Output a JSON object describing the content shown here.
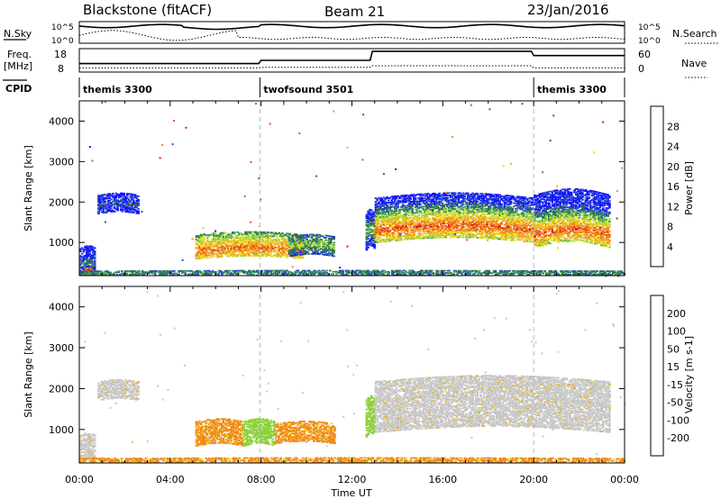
{
  "header": {
    "title": "Blackstone (fitACF)",
    "beam": "Beam 21",
    "date": "23/Jan/2016"
  },
  "panels": {
    "nsky_label": "N.Sky",
    "nsearch_label": "N.Search",
    "freq_label_top": "Freq.",
    "freq_label_bottom": "[MHz]",
    "nave_label": "Nave",
    "cpid_label": "CPID",
    "nsky_ticks": [
      "10^5",
      "10^0"
    ],
    "nsearch_ticks": [
      "10^5",
      "10^0"
    ],
    "freq_ticks": [
      "18",
      "8"
    ],
    "nave_ticks": [
      "60",
      "0"
    ]
  },
  "cpid": [
    {
      "name": "themis 3300",
      "start_hour": 0,
      "end_hour": 7.95
    },
    {
      "name": "twofsound 3501",
      "start_hour": 7.95,
      "end_hour": 20.0
    },
    {
      "name": "themis 3300",
      "start_hour": 20.0,
      "end_hour": 24
    }
  ],
  "colors": {
    "power": [
      "#1414ff",
      "#2c4fc8",
      "#2e6a56",
      "#3a9a5a",
      "#98d63a",
      "#e8dc2a",
      "#f0b21c",
      "#f08a1c",
      "#ea5214",
      "#e01414"
    ],
    "velocity": [
      "#1414c8",
      "#2c4fc8",
      "#2e6a56",
      "#8cd23a",
      "#c8c8c8",
      "#c8c8c8",
      "#f0b21c",
      "#f08a1c",
      "#ea5214",
      "#e01414"
    ],
    "gray": "#c8c8c8"
  },
  "chart_data": [
    {
      "type": "heatmap",
      "name": "power",
      "ylabel": "Slant Range [km]",
      "colorbar_label": "Power [dB]",
      "colorbar_ticks": [
        "28",
        "24",
        "20",
        "16",
        "12",
        "8",
        "4"
      ],
      "xlim_hours": [
        0,
        24
      ],
      "ylim_km": [
        180,
        4500
      ],
      "y_ticks": [
        "4000",
        "3000",
        "2000",
        "1000"
      ],
      "regions": [
        {
          "t0": 0.8,
          "t1": 2.6,
          "r0": 1750,
          "r1": 2200,
          "core": 1950,
          "level": 0.18
        },
        {
          "t0": 0.0,
          "t1": 0.7,
          "r0": 250,
          "r1": 900,
          "core": 500,
          "level": 0.25
        },
        {
          "t0": 0.0,
          "t1": 0.5,
          "r0": 180,
          "r1": 350,
          "core": 250,
          "level": 0.9
        },
        {
          "t0": 5.1,
          "t1": 9.8,
          "r0": 650,
          "r1": 1250,
          "core": 850,
          "level": 0.8
        },
        {
          "t0": 9.2,
          "t1": 11.2,
          "r0": 700,
          "r1": 1200,
          "core": 950,
          "level": 0.45
        },
        {
          "t0": 12.6,
          "t1": 13.0,
          "r0": 900,
          "r1": 1800,
          "core": 1300,
          "level": 0.45
        },
        {
          "t0": 13.0,
          "t1": 20.0,
          "r0": 1100,
          "r1": 2200,
          "core": 1400,
          "level": 0.85
        },
        {
          "t0": 20.0,
          "t1": 23.3,
          "r0": 1000,
          "r1": 2300,
          "core": 1300,
          "level": 0.85
        },
        {
          "t0": 0.0,
          "t1": 24.0,
          "r0": 180,
          "r1": 320,
          "core": 250,
          "level": 0.3
        }
      ]
    },
    {
      "type": "heatmap",
      "name": "velocity",
      "ylabel": "Slant Range [km]",
      "colorbar_label": "Velocity [m s-1]",
      "colorbar_ticks": [
        "200",
        "100",
        "50",
        "15",
        "-15",
        "-50",
        "-100",
        "-200"
      ],
      "xlim_hours": [
        0,
        24
      ],
      "ylim_km": [
        180,
        4500
      ],
      "y_ticks": [
        "4000",
        "3000",
        "2000",
        "1000"
      ],
      "x_ticks": [
        "00:00",
        "04:00",
        "08:00",
        "12:00",
        "16:00",
        "20:00",
        "00:00"
      ],
      "xlabel": "Time UT",
      "regions": [
        {
          "t0": 0.8,
          "t1": 2.6,
          "r0": 1750,
          "r1": 2200,
          "vel": "gray"
        },
        {
          "t0": 0.0,
          "t1": 0.7,
          "r0": 250,
          "r1": 900,
          "vel": "gray"
        },
        {
          "t0": 5.1,
          "t1": 7.2,
          "r0": 650,
          "r1": 1250,
          "vel": "orange"
        },
        {
          "t0": 7.2,
          "t1": 8.6,
          "r0": 650,
          "r1": 1250,
          "vel": "green"
        },
        {
          "t0": 8.6,
          "t1": 11.2,
          "r0": 700,
          "r1": 1200,
          "vel": "orange"
        },
        {
          "t0": 12.6,
          "t1": 13.0,
          "r0": 900,
          "r1": 1800,
          "vel": "green"
        },
        {
          "t0": 13.0,
          "t1": 23.3,
          "r0": 1050,
          "r1": 2300,
          "vel": "gray"
        },
        {
          "t0": 0.0,
          "t1": 24.0,
          "r0": 180,
          "r1": 320,
          "vel": "orange"
        }
      ]
    }
  ]
}
